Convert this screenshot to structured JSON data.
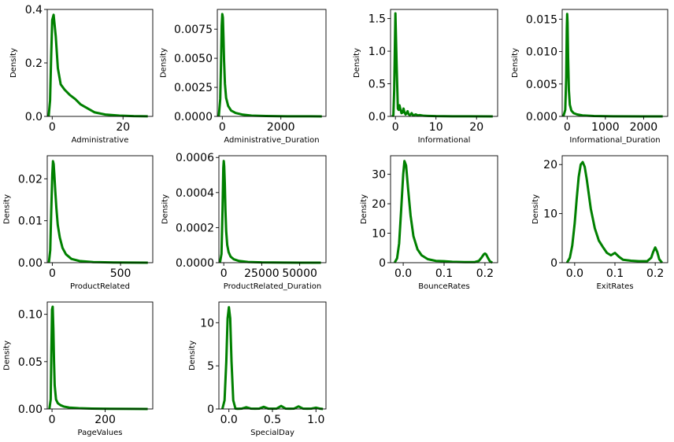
{
  "style": {
    "line_color": "#008000",
    "background": "#ffffff"
  },
  "chart_data": [
    {
      "type": "line",
      "xlabel": "Administrative",
      "ylabel": "Density",
      "xlim": [
        -1.4,
        28.4
      ],
      "ylim": [
        0,
        0.4
      ],
      "xticks": [
        0,
        20
      ],
      "xticklabels": [
        "0",
        "20"
      ],
      "yticks": [
        0,
        0.2,
        0.4
      ],
      "yticklabels": [
        "0.0",
        "0.2",
        "0.4"
      ],
      "x": [
        -1.0,
        -0.6,
        -0.3,
        0,
        0.4,
        1,
        1.6,
        2.4,
        3.5,
        5,
        6.5,
        8,
        10,
        12,
        15,
        19,
        23,
        27
      ],
      "y": [
        0,
        0.06,
        0.22,
        0.36,
        0.38,
        0.3,
        0.18,
        0.12,
        0.1,
        0.08,
        0.065,
        0.045,
        0.03,
        0.015,
        0.007,
        0.003,
        0.001,
        0.0003
      ]
    },
    {
      "type": "line",
      "xlabel": "Administrative_Duration",
      "ylabel": "Density",
      "xlim": [
        -170,
        3540
      ],
      "ylim": [
        0,
        0.0092
      ],
      "xticks": [
        0,
        2000
      ],
      "xticklabels": [
        "0",
        "2000"
      ],
      "yticks": [
        0,
        0.0025,
        0.005,
        0.0075
      ],
      "yticklabels": [
        "0.0000",
        "0.0025",
        "0.0050",
        "0.0075"
      ],
      "x": [
        -120,
        -70,
        -40,
        -20,
        0,
        20,
        40,
        60,
        90,
        130,
        200,
        300,
        450,
        700,
        1000,
        1500,
        2200,
        3000,
        3400
      ],
      "y": [
        0,
        0.0015,
        0.005,
        0.0078,
        0.0088,
        0.0085,
        0.0068,
        0.0048,
        0.0028,
        0.0016,
        0.0009,
        0.0005,
        0.0003,
        0.00015,
        7e-05,
        3e-05,
        1e-05,
        5e-06,
        2e-06
      ]
    },
    {
      "type": "line",
      "xlabel": "Informational",
      "ylabel": "Density",
      "xlim": [
        -1.2,
        25.2
      ],
      "ylim": [
        0,
        1.64
      ],
      "xticks": [
        0,
        10,
        20
      ],
      "xticklabels": [
        "0",
        "10",
        "20"
      ],
      "yticks": [
        0,
        0.5,
        1.0,
        1.5
      ],
      "yticklabels": [
        "0.0",
        "0.5",
        "1.0",
        "1.5"
      ],
      "x": [
        -0.8,
        -0.5,
        -0.3,
        0,
        0.3,
        0.6,
        0.8,
        1,
        1.2,
        1.5,
        1.8,
        2,
        2.2,
        2.5,
        2.8,
        3,
        3.2,
        3.5,
        3.8,
        4,
        4.3,
        4.6,
        5,
        5.5,
        6,
        7,
        8,
        10,
        14,
        18,
        24
      ],
      "y": [
        0,
        0.02,
        0.4,
        1.58,
        0.8,
        0.12,
        0.1,
        0.17,
        0.12,
        0.05,
        0.06,
        0.12,
        0.07,
        0.03,
        0.05,
        0.08,
        0.04,
        0.02,
        0.03,
        0.05,
        0.02,
        0.02,
        0.03,
        0.015,
        0.02,
        0.01,
        0.008,
        0.004,
        0.002,
        0.001,
        0.0005
      ]
    },
    {
      "type": "line",
      "xlabel": "Informational_Duration",
      "ylabel": "Density",
      "xlim": [
        -130,
        2630
      ],
      "ylim": [
        0,
        0.0165
      ],
      "xticks": [
        0,
        1000,
        2000
      ],
      "xticklabels": [
        "0",
        "1000",
        "2000"
      ],
      "yticks": [
        0,
        0.005,
        0.01,
        0.015
      ],
      "yticklabels": [
        "0.000",
        "0.005",
        "0.010",
        "0.015"
      ],
      "x": [
        -100,
        -50,
        -25,
        -10,
        0,
        10,
        25,
        45,
        70,
        110,
        170,
        260,
        400,
        700,
        1200,
        2000,
        2500
      ],
      "y": [
        0,
        0.001,
        0.006,
        0.0135,
        0.0158,
        0.0145,
        0.009,
        0.004,
        0.0018,
        0.0009,
        0.0005,
        0.0003,
        0.00015,
        6e-05,
        2e-05,
        5e-06,
        1e-06
      ]
    },
    {
      "type": "line",
      "xlabel": "ProductRelated",
      "ylabel": "Density",
      "xlim": [
        -37,
        736
      ],
      "ylim": [
        0,
        0.0255
      ],
      "xticks": [
        0,
        500
      ],
      "xticklabels": [
        "0",
        "500"
      ],
      "yticks": [
        0,
        0.01,
        0.02
      ],
      "yticklabels": [
        "0.00",
        "0.01",
        "0.02"
      ],
      "x": [
        -25,
        -15,
        -8,
        0,
        5,
        10,
        15,
        22,
        30,
        40,
        55,
        75,
        100,
        140,
        200,
        300,
        450,
        700
      ],
      "y": [
        0,
        0.003,
        0.012,
        0.021,
        0.0242,
        0.0235,
        0.021,
        0.017,
        0.013,
        0.009,
        0.006,
        0.0035,
        0.002,
        0.0009,
        0.0004,
        0.00015,
        5e-05,
        1e-05
      ]
    },
    {
      "type": "line",
      "xlabel": "ProductRelated_Duration",
      "ylabel": "Density",
      "xlim": [
        -3200,
        67300
      ],
      "ylim": [
        0,
        0.00061
      ],
      "xticks": [
        0,
        25000,
        50000
      ],
      "xticklabels": [
        "0",
        "25000",
        "50000"
      ],
      "yticks": [
        0,
        0.0002,
        0.0004,
        0.0006
      ],
      "yticklabels": [
        "0.0000",
        "0.0002",
        "0.0004",
        "0.0006"
      ],
      "x": [
        -2500,
        -1500,
        -800,
        -300,
        0,
        300,
        700,
        1100,
        1600,
        2300,
        3200,
        4500,
        6500,
        10000,
        16000,
        25000,
        40000,
        55000,
        64000
      ],
      "y": [
        0,
        5e-05,
        0.0003,
        0.00054,
        0.00058,
        0.00055,
        0.00045,
        0.0003,
        0.00018,
        0.0001,
        6e-05,
        3.5e-05,
        2e-05,
        1e-05,
        4e-06,
        1.5e-06,
        5e-07,
        2e-07,
        1e-07
      ]
    },
    {
      "type": "line",
      "xlabel": "BounceRates",
      "ylabel": "Density",
      "xlim": [
        -0.031,
        0.231
      ],
      "ylim": [
        0,
        36.3
      ],
      "xticks": [
        0.0,
        0.1,
        0.2
      ],
      "xticklabels": [
        "0.0",
        "0.1",
        "0.2"
      ],
      "yticks": [
        0,
        10,
        20,
        30
      ],
      "yticklabels": [
        "0",
        "10",
        "20",
        "30"
      ],
      "x": [
        -0.021,
        -0.015,
        -0.01,
        -0.005,
        0,
        0.003,
        0.007,
        0.012,
        0.018,
        0.025,
        0.035,
        0.045,
        0.06,
        0.08,
        0.1,
        0.12,
        0.15,
        0.175,
        0.185,
        0.192,
        0.197,
        0.2,
        0.203,
        0.207,
        0.212,
        0.218
      ],
      "y": [
        0,
        1.5,
        6.5,
        18,
        30,
        34.5,
        33,
        25,
        16,
        9,
        4.5,
        2.5,
        1.2,
        0.6,
        0.5,
        0.3,
        0.2,
        0.2,
        0.6,
        1.8,
        2.8,
        3.1,
        2.8,
        1.7,
        0.5,
        0
      ]
    },
    {
      "type": "line",
      "xlabel": "ExitRates",
      "ylabel": "Density",
      "xlim": [
        -0.031,
        0.231
      ],
      "ylim": [
        0,
        21.8
      ],
      "xticks": [
        0.0,
        0.1,
        0.2
      ],
      "xticklabels": [
        "0.0",
        "0.1",
        "0.2"
      ],
      "yticks": [
        0,
        10,
        20
      ],
      "yticklabels": [
        "0",
        "10",
        "20"
      ],
      "x": [
        -0.019,
        -0.012,
        -0.006,
        0,
        0.005,
        0.01,
        0.015,
        0.02,
        0.025,
        0.03,
        0.035,
        0.04,
        0.05,
        0.06,
        0.07,
        0.08,
        0.09,
        0.1,
        0.11,
        0.12,
        0.14,
        0.16,
        0.18,
        0.19,
        0.195,
        0.2,
        0.205,
        0.21,
        0.217
      ],
      "y": [
        0,
        1,
        3.5,
        8,
        13,
        17.5,
        20,
        20.5,
        19.5,
        17,
        14,
        11,
        7,
        4.5,
        3.2,
        2,
        1.5,
        2,
        1.2,
        0.6,
        0.4,
        0.3,
        0.3,
        1,
        2.2,
        3.1,
        2.2,
        0.7,
        0
      ]
    },
    {
      "type": "line",
      "xlabel": "PageValues",
      "ylabel": "Density",
      "xlim": [
        -18,
        379
      ],
      "ylim": [
        0,
        0.113
      ],
      "xticks": [
        0,
        200
      ],
      "xticklabels": [
        "0",
        "200"
      ],
      "yticks": [
        0,
        0.05,
        0.1
      ],
      "yticklabels": [
        "0.00",
        "0.05",
        "0.10"
      ],
      "x": [
        -10,
        -5,
        -2.5,
        0,
        2.5,
        5,
        7.5,
        10,
        15,
        22,
        32,
        45,
        65,
        100,
        150,
        220,
        300,
        360
      ],
      "y": [
        0,
        0.01,
        0.06,
        0.105,
        0.108,
        0.085,
        0.05,
        0.025,
        0.01,
        0.006,
        0.004,
        0.0025,
        0.0015,
        0.0008,
        0.0004,
        0.0002,
        0.0001,
        5e-05
      ]
    },
    {
      "type": "line",
      "xlabel": "SpecialDay",
      "ylabel": "Density",
      "xlim": [
        -0.115,
        1.115
      ],
      "ylim": [
        0,
        12.4
      ],
      "xticks": [
        0.0,
        0.5,
        1.0
      ],
      "xticklabels": [
        "0.0",
        "0.5",
        "1.0"
      ],
      "yticks": [
        0,
        5,
        10
      ],
      "yticklabels": [
        "0",
        "5",
        "10"
      ],
      "x": [
        -0.075,
        -0.05,
        -0.03,
        -0.015,
        0,
        0.015,
        0.03,
        0.05,
        0.075,
        0.1,
        0.15,
        0.2,
        0.25,
        0.3,
        0.35,
        0.4,
        0.45,
        0.5,
        0.55,
        0.6,
        0.65,
        0.7,
        0.75,
        0.8,
        0.85,
        0.9,
        0.95,
        1.0,
        1.05,
        1.08
      ],
      "y": [
        0,
        1,
        5.5,
        10.5,
        11.8,
        10.5,
        5.5,
        1,
        0.05,
        0.02,
        0.05,
        0.2,
        0.05,
        0.03,
        0.05,
        0.25,
        0.05,
        0.03,
        0.05,
        0.35,
        0.05,
        0.03,
        0.05,
        0.3,
        0.05,
        0.03,
        0.05,
        0.15,
        0.03,
        0
      ]
    }
  ]
}
